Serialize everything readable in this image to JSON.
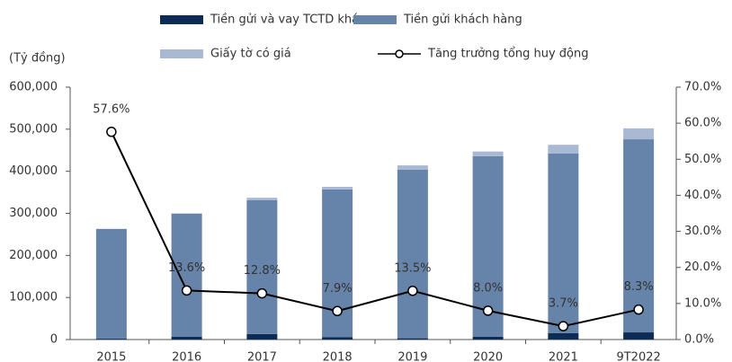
{
  "chart_data": {
    "type": "bar",
    "y_axis_label": "(Tỷ đồng)",
    "categories": [
      "2015",
      "2016",
      "2017",
      "2018",
      "2019",
      "2020",
      "2021",
      "9T2022"
    ],
    "series": [
      {
        "name": "Tiền gửi và vay TCTD khác",
        "color": "#0d2b55",
        "values": [
          2000,
          7000,
          13000,
          6000,
          3000,
          7000,
          15000,
          17000
        ]
      },
      {
        "name": "Tiền gửi khách hàng",
        "color": "#6683aa",
        "values": [
          261000,
          292000,
          318000,
          351000,
          401000,
          429000,
          427000,
          459000
        ]
      },
      {
        "name": "Giấy tờ có giá",
        "color": "#a9b8d3",
        "values": [
          0,
          1000,
          6000,
          6000,
          10000,
          11000,
          21000,
          26000
        ]
      },
      {
        "name": "Tăng trưởng tổng huy động",
        "type": "line",
        "axis": "y2",
        "color": "#000000",
        "values": [
          57.6,
          13.6,
          12.8,
          7.9,
          13.5,
          8.0,
          3.7,
          8.3
        ],
        "value_labels": [
          "57.6%",
          "13.6%",
          "12.8%",
          "7.9%",
          "13.5%",
          "8.0%",
          "3.7%",
          "8.3%"
        ]
      }
    ],
    "ylim": [
      0,
      600000
    ],
    "yticks": [
      {
        "value": 0,
        "label": "0"
      },
      {
        "value": 100000,
        "label": "100,000"
      },
      {
        "value": 200000,
        "label": "200,000"
      },
      {
        "value": 300000,
        "label": "300,000"
      },
      {
        "value": 400000,
        "label": "400,000"
      },
      {
        "value": 500000,
        "label": "500,000"
      },
      {
        "value": 600000,
        "label": "600,000"
      }
    ],
    "y2lim": [
      0,
      70
    ],
    "y2ticks": [
      {
        "value": 0,
        "label": "0.0%"
      },
      {
        "value": 10,
        "label": "10.0%"
      },
      {
        "value": 20,
        "label": "20.0%"
      },
      {
        "value": 30,
        "label": "30.0%"
      },
      {
        "value": 40,
        "label": "40.0%"
      },
      {
        "value": 50,
        "label": "50.0%"
      },
      {
        "value": 60,
        "label": "60.0%"
      },
      {
        "value": 70,
        "label": "70.0%"
      }
    ],
    "legend": "top"
  }
}
